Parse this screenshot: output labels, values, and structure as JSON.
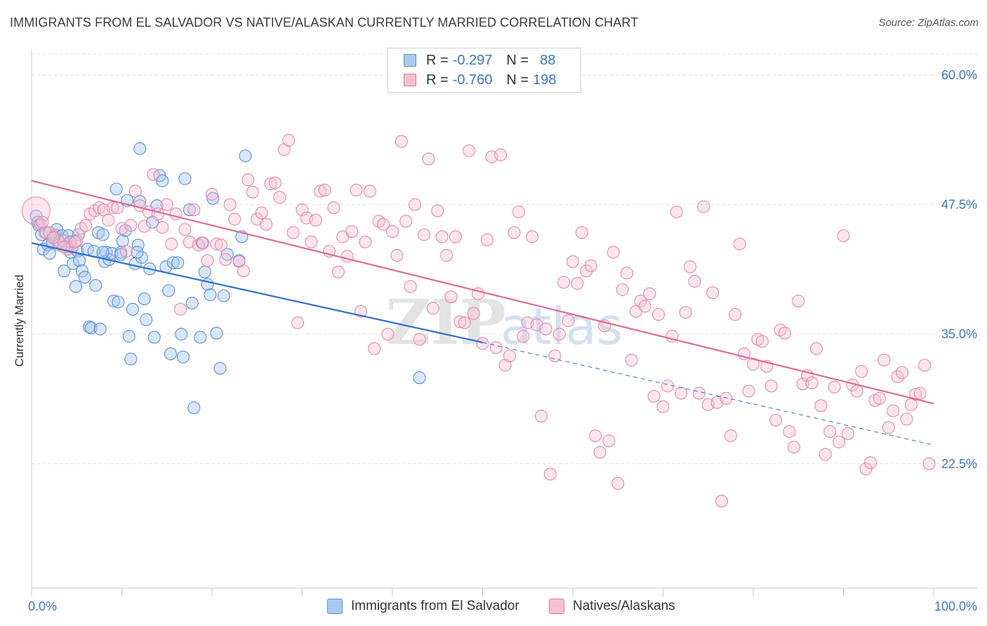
{
  "header": {
    "title": "IMMIGRANTS FROM EL SALVADOR VS NATIVE/ALASKAN CURRENTLY MARRIED CORRELATION CHART",
    "source": "Source: ZipAtlas.com"
  },
  "watermark": {
    "zip": "ZIP",
    "atlas": "atlas"
  },
  "legend": {
    "r_label": "R =",
    "n_label": "N =",
    "rows": [
      {
        "r": "-0.297",
        "n": "88",
        "color": "#a9c9f0",
        "border": "#5b8fd6"
      },
      {
        "r": "-0.760",
        "n": "198",
        "color": "#f7c0d2",
        "border": "#e07aa0"
      }
    ]
  },
  "chart_data": {
    "type": "scatter",
    "xlabel": "",
    "ylabel": "Currently Married",
    "x_tick_labels": [
      "0.0%",
      "100.0%"
    ],
    "y_tick_labels": [
      "22.5%",
      "35.0%",
      "47.5%",
      "60.0%"
    ],
    "y_ticks": [
      22.5,
      35.0,
      47.5,
      60.0
    ],
    "xlim": [
      0,
      100
    ],
    "ylim": [
      10.5,
      62.5
    ],
    "grid": true,
    "legend_position": "top-center",
    "series": [
      {
        "name": "Immigrants from El Salvador",
        "color": "#7aa7e0",
        "line_color": "#2e6fcc",
        "trend": {
          "x0": 0,
          "y0": 43.8,
          "x1": 50,
          "y1": 34.2,
          "dashed_to_x": 100,
          "dashed_to_y": 24.3
        },
        "points": [
          [
            0.5,
            46.4
          ],
          [
            0.7,
            45.8
          ],
          [
            0.8,
            45.5
          ],
          [
            1.1,
            44.6
          ],
          [
            1.3,
            43.2
          ],
          [
            1.6,
            44.8
          ],
          [
            1.8,
            43.6
          ],
          [
            2.0,
            42.8
          ],
          [
            2.3,
            43.8
          ],
          [
            2.6,
            44.6
          ],
          [
            2.8,
            45.1
          ],
          [
            3.1,
            43.9
          ],
          [
            3.4,
            44.5
          ],
          [
            3.6,
            41.1
          ],
          [
            3.9,
            43.5
          ],
          [
            4.1,
            44.5
          ],
          [
            4.3,
            42.9
          ],
          [
            4.6,
            41.8
          ],
          [
            4.9,
            39.6
          ],
          [
            5.1,
            43.0
          ],
          [
            5.3,
            42.1
          ],
          [
            5.6,
            41.1
          ],
          [
            5.9,
            40.5
          ],
          [
            6.2,
            43.2
          ],
          [
            6.4,
            35.7
          ],
          [
            6.6,
            35.6
          ],
          [
            6.9,
            43.0
          ],
          [
            7.1,
            39.7
          ],
          [
            7.4,
            44.8
          ],
          [
            7.6,
            35.5
          ],
          [
            7.9,
            44.6
          ],
          [
            8.1,
            42.0
          ],
          [
            8.3,
            42.9
          ],
          [
            8.6,
            42.2
          ],
          [
            8.9,
            42.8
          ],
          [
            9.1,
            38.2
          ],
          [
            9.4,
            49.0
          ],
          [
            9.6,
            38.1
          ],
          [
            9.9,
            42.9
          ],
          [
            10.1,
            44.0
          ],
          [
            10.4,
            45.0
          ],
          [
            10.6,
            47.9
          ],
          [
            10.8,
            34.8
          ],
          [
            11.0,
            32.6
          ],
          [
            11.2,
            37.4
          ],
          [
            11.5,
            41.8
          ],
          [
            11.8,
            43.6
          ],
          [
            12.0,
            47.8
          ],
          [
            12.2,
            42.4
          ],
          [
            12.5,
            38.4
          ],
          [
            12.7,
            36.4
          ],
          [
            13.1,
            41.3
          ],
          [
            13.4,
            45.8
          ],
          [
            13.6,
            34.7
          ],
          [
            13.9,
            47.4
          ],
          [
            14.2,
            50.3
          ],
          [
            14.5,
            49.8
          ],
          [
            14.9,
            41.5
          ],
          [
            15.2,
            39.2
          ],
          [
            15.4,
            33.1
          ],
          [
            15.7,
            41.9
          ],
          [
            16.2,
            41.9
          ],
          [
            16.6,
            35.0
          ],
          [
            16.8,
            32.8
          ],
          [
            17.0,
            50.0
          ],
          [
            17.5,
            47.0
          ],
          [
            17.8,
            38.0
          ],
          [
            18.0,
            27.9
          ],
          [
            18.7,
            34.7
          ],
          [
            19.2,
            41.0
          ],
          [
            19.5,
            39.8
          ],
          [
            19.8,
            38.8
          ],
          [
            20.1,
            48.1
          ],
          [
            20.5,
            35.1
          ],
          [
            20.9,
            31.7
          ],
          [
            21.3,
            38.7
          ],
          [
            23.0,
            42.1
          ],
          [
            23.3,
            44.4
          ],
          [
            23.7,
            52.2
          ],
          [
            43.0,
            30.8
          ],
          [
            12.0,
            52.9
          ],
          [
            9.9,
            42.7
          ],
          [
            7.9,
            42.9
          ],
          [
            5.2,
            44.6
          ],
          [
            4.3,
            43.9
          ],
          [
            11.7,
            42.9
          ],
          [
            18.9,
            43.8
          ],
          [
            21.7,
            42.7
          ]
        ]
      },
      {
        "name": "Natives/Alaskans",
        "color": "#f0a0bd",
        "line_color": "#e06a96",
        "trend": {
          "x0": 0,
          "y0": 49.8,
          "x1": 100,
          "y1": 28.3
        },
        "points": [
          [
            0.5,
            46.9
          ],
          [
            1.0,
            45.6
          ],
          [
            1.5,
            44.8
          ],
          [
            2.0,
            44.8
          ],
          [
            2.5,
            44.4
          ],
          [
            3.0,
            43.6
          ],
          [
            3.5,
            44.0
          ],
          [
            4.0,
            43.2
          ],
          [
            4.5,
            43.4
          ],
          [
            5.0,
            44.0
          ],
          [
            5.5,
            45.2
          ],
          [
            6.0,
            45.5
          ],
          [
            6.5,
            46.6
          ],
          [
            7.0,
            46.9
          ],
          [
            7.5,
            47.2
          ],
          [
            8.0,
            47.0
          ],
          [
            8.5,
            46.0
          ],
          [
            9.0,
            47.2
          ],
          [
            9.5,
            47.2
          ],
          [
            10.0,
            45.2
          ],
          [
            10.5,
            43.0
          ],
          [
            11.0,
            45.5
          ],
          [
            11.5,
            48.8
          ],
          [
            12.0,
            47.4
          ],
          [
            12.5,
            45.4
          ],
          [
            13.0,
            46.8
          ],
          [
            13.5,
            50.4
          ],
          [
            14.0,
            46.6
          ],
          [
            14.5,
            45.3
          ],
          [
            15.0,
            47.5
          ],
          [
            15.5,
            43.7
          ],
          [
            16.0,
            46.6
          ],
          [
            16.5,
            37.4
          ],
          [
            17.0,
            45.1
          ],
          [
            17.5,
            43.9
          ],
          [
            18.0,
            47.0
          ],
          [
            18.5,
            43.6
          ],
          [
            19.0,
            43.8
          ],
          [
            19.5,
            42.1
          ],
          [
            20.0,
            48.5
          ],
          [
            20.5,
            43.7
          ],
          [
            21.0,
            43.6
          ],
          [
            21.5,
            42.2
          ],
          [
            22.0,
            47.5
          ],
          [
            22.5,
            46.1
          ],
          [
            23.0,
            42.0
          ],
          [
            23.5,
            41.1
          ],
          [
            24.0,
            49.9
          ],
          [
            24.5,
            48.7
          ],
          [
            25.0,
            46.1
          ],
          [
            25.5,
            46.7
          ],
          [
            26.0,
            45.6
          ],
          [
            26.5,
            49.5
          ],
          [
            27.0,
            49.6
          ],
          [
            27.5,
            48.2
          ],
          [
            28.0,
            52.8
          ],
          [
            28.5,
            53.7
          ],
          [
            29.0,
            44.8
          ],
          [
            29.5,
            36.1
          ],
          [
            30.0,
            47.0
          ],
          [
            30.5,
            46.2
          ],
          [
            31.0,
            43.9
          ],
          [
            31.5,
            46.0
          ],
          [
            32.0,
            48.8
          ],
          [
            32.5,
            48.9
          ],
          [
            33.0,
            43.0
          ],
          [
            33.5,
            47.2
          ],
          [
            34.0,
            41.0
          ],
          [
            34.5,
            44.4
          ],
          [
            35.0,
            42.5
          ],
          [
            35.5,
            44.9
          ],
          [
            36.0,
            48.9
          ],
          [
            36.5,
            37.2
          ],
          [
            37.0,
            43.9
          ],
          [
            37.5,
            48.8
          ],
          [
            38.0,
            33.6
          ],
          [
            38.5,
            45.9
          ],
          [
            39.0,
            45.6
          ],
          [
            39.5,
            35.0
          ],
          [
            40.0,
            44.9
          ],
          [
            40.5,
            42.6
          ],
          [
            41.0,
            53.6
          ],
          [
            41.5,
            45.9
          ],
          [
            42.0,
            39.6
          ],
          [
            42.5,
            47.5
          ],
          [
            43.0,
            34.5
          ],
          [
            43.5,
            44.6
          ],
          [
            44.0,
            51.9
          ],
          [
            44.5,
            37.5
          ],
          [
            45.0,
            46.9
          ],
          [
            45.5,
            44.4
          ],
          [
            46.0,
            42.6
          ],
          [
            46.5,
            38.6
          ],
          [
            47.0,
            44.4
          ],
          [
            47.5,
            36.2
          ],
          [
            48.0,
            36.1
          ],
          [
            48.5,
            52.7
          ],
          [
            49.0,
            37.0
          ],
          [
            49.5,
            38.9
          ],
          [
            50.0,
            34.1
          ],
          [
            50.5,
            44.1
          ],
          [
            51.0,
            52.1
          ],
          [
            51.5,
            33.7
          ],
          [
            52.0,
            52.3
          ],
          [
            52.5,
            32.0
          ],
          [
            53.0,
            32.9
          ],
          [
            53.5,
            44.8
          ],
          [
            54.0,
            46.8
          ],
          [
            54.5,
            34.8
          ],
          [
            55.0,
            36.1
          ],
          [
            55.5,
            44.4
          ],
          [
            56.0,
            35.9
          ],
          [
            56.5,
            27.1
          ],
          [
            57.0,
            35.5
          ],
          [
            57.5,
            21.5
          ],
          [
            58.0,
            32.9
          ],
          [
            58.5,
            35.0
          ],
          [
            59.0,
            40.0
          ],
          [
            59.5,
            36.3
          ],
          [
            60.0,
            42.0
          ],
          [
            60.5,
            39.9
          ],
          [
            61.0,
            44.8
          ],
          [
            61.5,
            41.1
          ],
          [
            62.0,
            41.6
          ],
          [
            62.5,
            25.2
          ],
          [
            63.0,
            23.6
          ],
          [
            63.5,
            35.8
          ],
          [
            64.0,
            24.7
          ],
          [
            64.5,
            42.9
          ],
          [
            65.0,
            20.6
          ],
          [
            65.5,
            39.3
          ],
          [
            66.0,
            40.9
          ],
          [
            66.5,
            32.5
          ],
          [
            67.0,
            37.2
          ],
          [
            67.5,
            38.2
          ],
          [
            68.0,
            37.7
          ],
          [
            68.5,
            38.9
          ],
          [
            69.0,
            29.0
          ],
          [
            69.5,
            36.9
          ],
          [
            70.0,
            28.0
          ],
          [
            70.5,
            30.0
          ],
          [
            71.0,
            34.8
          ],
          [
            71.5,
            46.8
          ],
          [
            72.0,
            29.3
          ],
          [
            72.5,
            37.1
          ],
          [
            73.0,
            41.5
          ],
          [
            73.5,
            40.1
          ],
          [
            74.0,
            29.3
          ],
          [
            74.5,
            47.3
          ],
          [
            75.0,
            28.2
          ],
          [
            75.5,
            39.0
          ],
          [
            76.0,
            28.4
          ],
          [
            76.5,
            18.9
          ],
          [
            77.0,
            28.8
          ],
          [
            77.5,
            25.2
          ],
          [
            78.0,
            36.9
          ],
          [
            78.5,
            43.7
          ],
          [
            79.0,
            33.1
          ],
          [
            79.5,
            29.5
          ],
          [
            80.0,
            32.1
          ],
          [
            80.5,
            34.5
          ],
          [
            81.0,
            34.3
          ],
          [
            81.5,
            31.9
          ],
          [
            82.0,
            30.0
          ],
          [
            82.5,
            26.7
          ],
          [
            83.0,
            35.4
          ],
          [
            83.5,
            35.1
          ],
          [
            84.0,
            25.6
          ],
          [
            84.5,
            24.1
          ],
          [
            85.0,
            38.2
          ],
          [
            85.5,
            30.2
          ],
          [
            86.0,
            31.0
          ],
          [
            86.5,
            30.3
          ],
          [
            87.0,
            33.6
          ],
          [
            87.5,
            28.1
          ],
          [
            88.0,
            23.4
          ],
          [
            88.5,
            25.6
          ],
          [
            89.0,
            29.9
          ],
          [
            89.5,
            24.6
          ],
          [
            90.0,
            44.5
          ],
          [
            90.5,
            25.4
          ],
          [
            91.0,
            30.1
          ],
          [
            91.5,
            29.5
          ],
          [
            92.0,
            31.4
          ],
          [
            92.5,
            22.0
          ],
          [
            93.0,
            22.6
          ],
          [
            93.5,
            28.6
          ],
          [
            94.0,
            28.8
          ],
          [
            94.5,
            32.5
          ],
          [
            95.0,
            26.0
          ],
          [
            95.5,
            27.6
          ],
          [
            96.0,
            30.9
          ],
          [
            96.5,
            31.3
          ],
          [
            97.0,
            26.8
          ],
          [
            97.5,
            28.2
          ],
          [
            98.0,
            29.2
          ],
          [
            98.5,
            29.3
          ],
          [
            99.0,
            32.0
          ],
          [
            99.5,
            22.5
          ],
          [
            1.2,
            45.8
          ],
          [
            2.4,
            44.3
          ],
          [
            3.6,
            43.4
          ],
          [
            4.8,
            43.9
          ]
        ]
      }
    ]
  },
  "bottom_legend": [
    "Immigrants from El Salvador",
    "Natives/Alaskans"
  ]
}
